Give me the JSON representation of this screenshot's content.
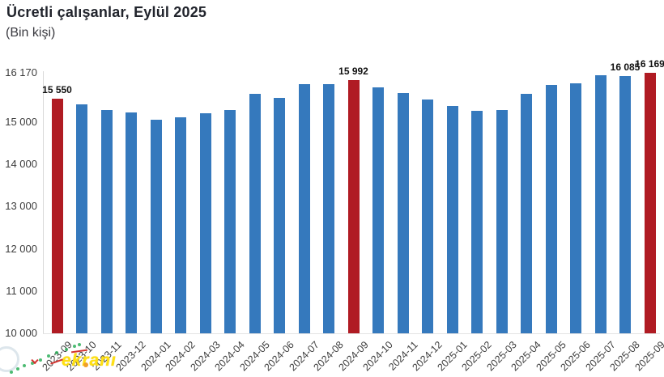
{
  "header": {
    "title": "Ücretli çalışanlar, Eylül 2025",
    "subtitle": "(Bin kişi)"
  },
  "watermark": {
    "text": "ekranı",
    "color": "#ffe011"
  },
  "chart_data": {
    "type": "bar",
    "title": "Ücretli çalışanlar, Eylül 2025",
    "subtitle": "(Bin kişi)",
    "unit": "Bin kişi",
    "categories": [
      "2023-09",
      "2023-10",
      "2023-11",
      "2023-12",
      "2024-01",
      "2024-02",
      "2024-03",
      "2024-04",
      "2024-05",
      "2024-06",
      "2024-07",
      "2024-08",
      "2024-09",
      "2024-10",
      "2024-11",
      "2024-12",
      "2025-01",
      "2025-02",
      "2025-03",
      "2025-04",
      "2025-05",
      "2025-06",
      "2025-07",
      "2025-08",
      "2025-09"
    ],
    "values": [
      15550,
      15430,
      15280,
      15225,
      15060,
      15110,
      15205,
      15280,
      15665,
      15585,
      15910,
      15895,
      15992,
      15830,
      15700,
      15540,
      15380,
      15265,
      15290,
      15665,
      15880,
      15930,
      16120,
      16085,
      16169
    ],
    "bar_labels": [
      "15 550",
      "",
      "",
      "",
      "",
      "",
      "",
      "",
      "",
      "",
      "",
      "",
      "15 992",
      "",
      "",
      "",
      "",
      "",
      "",
      "",
      "",
      "",
      "",
      "16 085",
      "16 169"
    ],
    "highlight_indices": [
      0,
      12,
      24
    ],
    "yticks": [
      {
        "value": 16170,
        "label": "16 170"
      },
      {
        "value": 15000,
        "label": "15 000"
      },
      {
        "value": 14000,
        "label": "14 000"
      },
      {
        "value": 13000,
        "label": "13 000"
      },
      {
        "value": 12000,
        "label": "12 000"
      },
      {
        "value": 11000,
        "label": "11 000"
      },
      {
        "value": 10000,
        "label": "10 000"
      }
    ],
    "ylim": [
      10000,
      16170
    ],
    "xlabel": "",
    "ylabel": "",
    "grid": false,
    "legend_position": "none",
    "colors": {
      "bar": "#3579bd",
      "highlight": "#b01b23",
      "axis": "#d9d9d9",
      "tick_text": "#3d3d3d",
      "bar_label_text": "#111111"
    }
  }
}
